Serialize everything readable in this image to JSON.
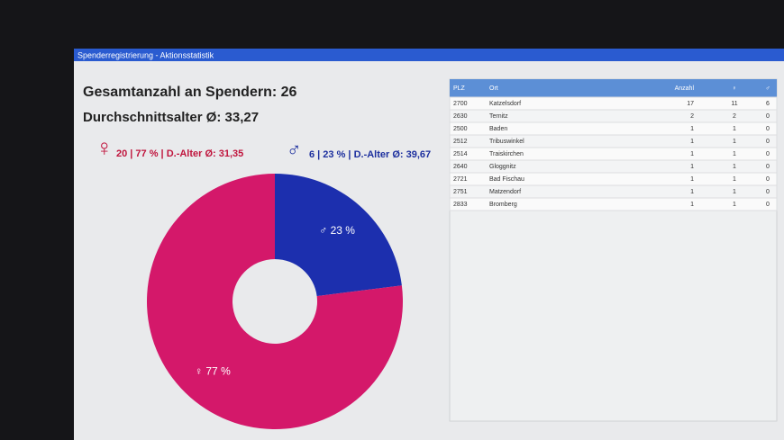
{
  "window": {
    "title": "Spenderregistrierung - Aktionsstatistik"
  },
  "stats": {
    "total": "Gesamtanzahl an Spendern: 26",
    "average_age": "Durchschnittsalter Ø: 33,27",
    "female_symbol": "♀",
    "female": "20 | 77 % | D.-Alter Ø: 31,35",
    "male_symbol": "♂",
    "male": "6 | 23 % | D.-Alter Ø: 39,67"
  },
  "chart_data": {
    "type": "pie",
    "donut": true,
    "values": [
      23,
      77
    ],
    "value_labels": [
      "♂ 23 %",
      "♀ 77 %"
    ],
    "colors": [
      "#1c2fae",
      "#d4186a"
    ]
  },
  "table": {
    "headers": [
      "PLZ",
      "Ort",
      "Anzahl",
      "♀",
      "♂"
    ],
    "rows": [
      [
        2700,
        "Katzelsdorf",
        17,
        11,
        6
      ],
      [
        2630,
        "Ternitz",
        2,
        2,
        0
      ],
      [
        2500,
        "Baden",
        1,
        1,
        0
      ],
      [
        2512,
        "Tribuswinkel",
        1,
        1,
        0
      ],
      [
        2514,
        "Traiskirchen",
        1,
        1,
        0
      ],
      [
        2640,
        "Gloggnitz",
        1,
        1,
        0
      ],
      [
        2721,
        "Bad Fischau",
        1,
        1,
        0
      ],
      [
        2751,
        "Matzendorf",
        1,
        1,
        0
      ],
      [
        2833,
        "Bromberg",
        1,
        1,
        0
      ]
    ]
  }
}
